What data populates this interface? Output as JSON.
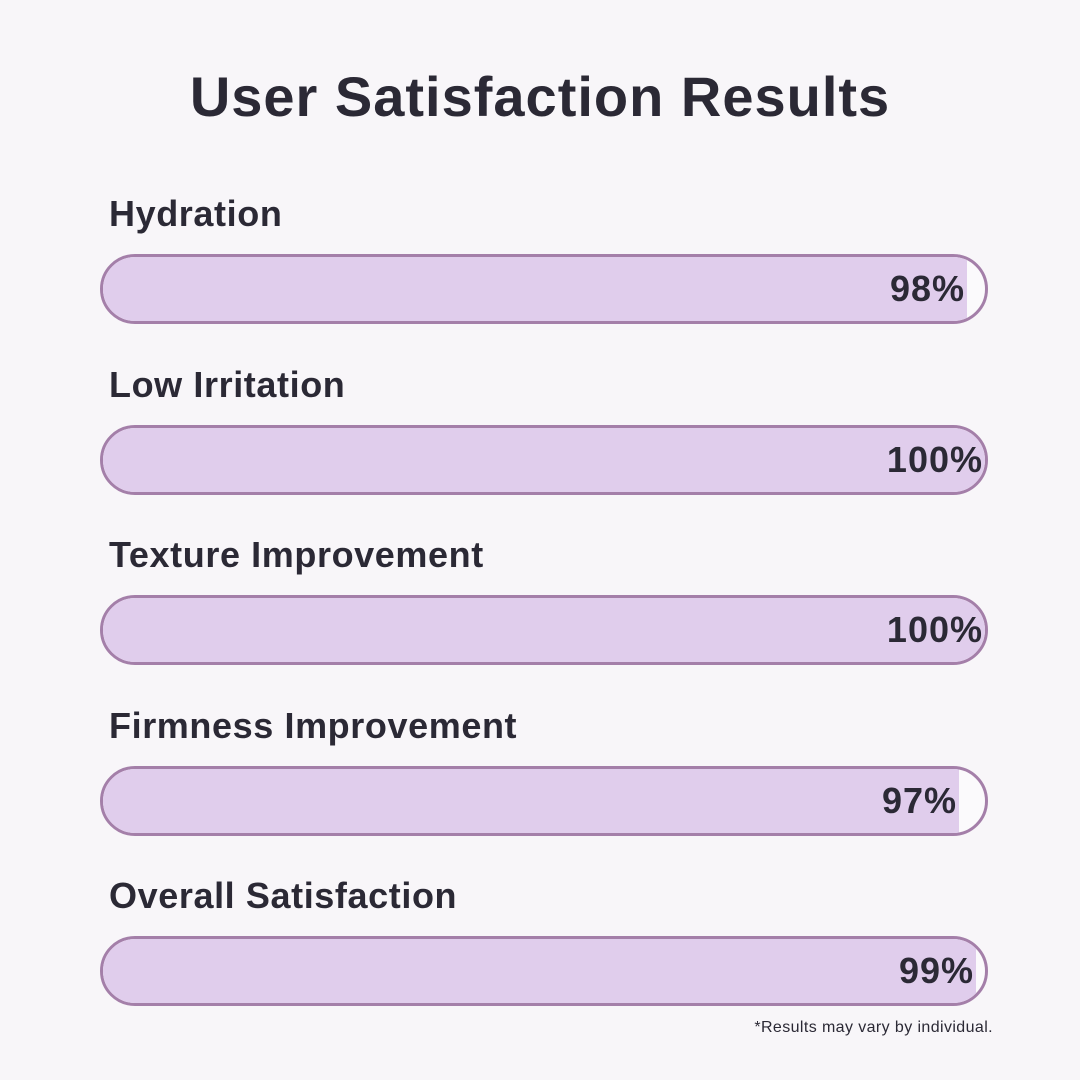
{
  "chart_data": {
    "type": "bar",
    "orientation": "horizontal",
    "title": "User Satisfaction Results",
    "categories": [
      "Hydration",
      "Low Irritation",
      "Texture Improvement",
      "Firmness Improvement",
      "Overall Satisfaction"
    ],
    "values": [
      98,
      100,
      100,
      97,
      99
    ],
    "value_labels": [
      "98%",
      "100%",
      "100%",
      "97%",
      "99%"
    ],
    "unit": "%",
    "xlim": [
      0,
      100
    ],
    "grid": false,
    "legend": "none"
  },
  "footnote": "*Results may vary by individual.",
  "colors": {
    "background": "#f8f6f9",
    "bar_fill": "#e0cdec",
    "bar_border": "#a47fa9",
    "text": "#2b2935"
  }
}
